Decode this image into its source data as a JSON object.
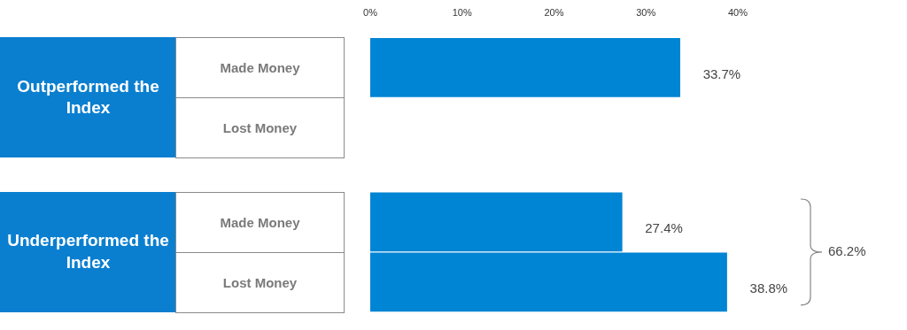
{
  "chart_data": {
    "type": "bar",
    "orientation": "horizontal",
    "categories": [
      "Made Money",
      "Lost Money",
      "Made Money",
      "Lost Money"
    ],
    "values": [
      33.7,
      null,
      27.4,
      38.8
    ],
    "value_labels": [
      "33.7%",
      null,
      "27.4%",
      "38.8%"
    ],
    "color": "#0084d4",
    "xlim": [
      0,
      40
    ],
    "xticks": [
      {
        "value": 0,
        "label": "0%"
      },
      {
        "value": 10,
        "label": "10%"
      },
      {
        "value": 20,
        "label": "20%"
      },
      {
        "value": 30,
        "label": "30%"
      },
      {
        "value": 40,
        "label": "40%"
      }
    ],
    "grid": false,
    "legend": false,
    "annotations": [
      "Outperformed the Index",
      "Underperformed the Index",
      "66.2%"
    ]
  }
}
